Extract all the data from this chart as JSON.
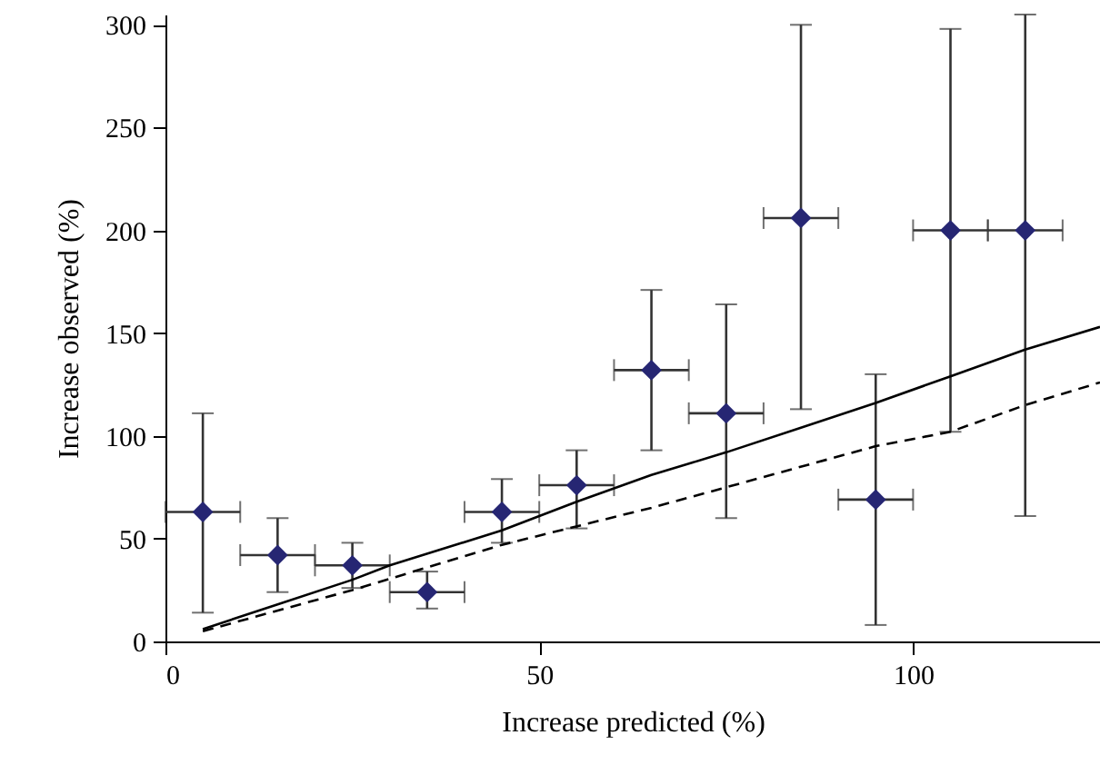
{
  "chart_data": {
    "type": "scatter",
    "xlabel": "Increase predicted (%)",
    "ylabel": "Increase observed (%)",
    "xlim": [
      0,
      125
    ],
    "xticks": [
      0,
      50,
      100
    ],
    "ylim": [
      0,
      305
    ],
    "yticks": [
      0,
      50,
      100,
      150,
      200,
      250,
      300
    ],
    "grid": false,
    "series": [
      {
        "color": "#262673",
        "marker": "diamond",
        "x": [
          5,
          15,
          25,
          35,
          45,
          55,
          65,
          75,
          85,
          95,
          105,
          115
        ],
        "values": [
          63,
          42,
          37,
          24,
          63,
          76,
          132,
          111,
          206,
          69,
          200,
          200
        ],
        "errors": [
          [
            14,
            111
          ],
          [
            24,
            60
          ],
          [
            26,
            48
          ],
          [
            16,
            34
          ],
          [
            48,
            79
          ],
          [
            55,
            93
          ],
          [
            93,
            171
          ],
          [
            60,
            164
          ],
          [
            113,
            300
          ],
          [
            8,
            130
          ],
          [
            102,
            298
          ],
          [
            61,
            305
          ]
        ],
        "xerrors": [
          5,
          5,
          5,
          5,
          5,
          5,
          5,
          5,
          5,
          5,
          5,
          5
        ]
      },
      {
        "type": "line",
        "color": "#000000",
        "line_style": "solid",
        "x": [
          5,
          15,
          25,
          30,
          45,
          55,
          65,
          75,
          85,
          95,
          105,
          115,
          125
        ],
        "values": [
          6,
          18,
          30,
          37,
          54,
          68,
          81,
          92,
          104,
          116,
          129,
          142,
          153
        ]
      },
      {
        "type": "line",
        "color": "#000000",
        "line_style": "dashed",
        "x": [
          5,
          25,
          45,
          65,
          75,
          95,
          105,
          115,
          125
        ],
        "values": [
          5,
          25,
          47,
          65,
          75,
          95,
          102,
          115,
          126
        ]
      }
    ]
  }
}
